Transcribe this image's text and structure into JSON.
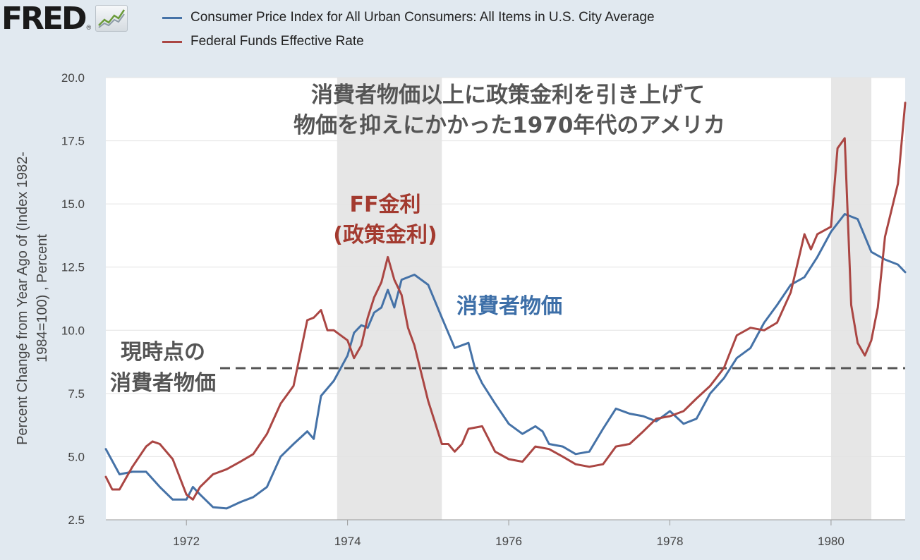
{
  "header": {
    "logo_text": "FRED",
    "logo_reg": "®",
    "logo_icon": "line-chart-icon"
  },
  "legend": [
    {
      "label": "Consumer Price Index for All Urban Consumers: All Items in U.S. City Average",
      "color": "#4572a7"
    },
    {
      "label": "Federal Funds Effective Rate",
      "color": "#aa4643"
    }
  ],
  "chart_data": {
    "type": "line",
    "ylabel_lines": [
      "Percent Change from Year Ago of (Index 1982-",
      "1984=100) , Percent"
    ],
    "ylim": [
      2.5,
      20.0
    ],
    "xlim": [
      1971.0,
      1980.92
    ],
    "y_ticks": [
      "2.5",
      "5.0",
      "7.5",
      "10.0",
      "12.5",
      "15.0",
      "17.5",
      "20.0"
    ],
    "x_ticks": [
      "1972",
      "1974",
      "1976",
      "1978",
      "1980"
    ],
    "grid": "horizontal",
    "recessions": [
      [
        1973.87,
        1975.17
      ],
      [
        1980.0,
        1980.5
      ]
    ],
    "reference_line": {
      "y": 8.5,
      "style": "dashed"
    },
    "series": [
      {
        "name": "Consumer Price Index for All Urban Consumers: All Items in U.S. City Average",
        "color": "#4572a7",
        "x": [
          1971.0,
          1971.17,
          1971.33,
          1971.5,
          1971.67,
          1971.83,
          1972.0,
          1972.08,
          1972.17,
          1972.33,
          1972.5,
          1972.67,
          1972.83,
          1973.0,
          1973.17,
          1973.33,
          1973.5,
          1973.58,
          1973.67,
          1973.83,
          1974.0,
          1974.08,
          1974.17,
          1974.25,
          1974.33,
          1974.42,
          1974.5,
          1974.58,
          1974.67,
          1974.83,
          1975.0,
          1975.17,
          1975.33,
          1975.5,
          1975.58,
          1975.67,
          1975.83,
          1976.0,
          1976.17,
          1976.33,
          1976.42,
          1976.5,
          1976.67,
          1976.83,
          1977.0,
          1977.17,
          1977.33,
          1977.5,
          1977.67,
          1977.83,
          1978.0,
          1978.17,
          1978.33,
          1978.5,
          1978.67,
          1978.83,
          1979.0,
          1979.17,
          1979.33,
          1979.5,
          1979.67,
          1979.83,
          1980.0,
          1980.17,
          1980.33,
          1980.5,
          1980.67,
          1980.83,
          1980.92
        ],
        "values": [
          5.3,
          4.3,
          4.4,
          4.4,
          3.8,
          3.3,
          3.3,
          3.8,
          3.5,
          3.0,
          2.95,
          3.2,
          3.4,
          3.8,
          5.0,
          5.5,
          6.0,
          5.7,
          7.4,
          8.0,
          9.0,
          9.9,
          10.2,
          10.1,
          10.7,
          10.9,
          11.6,
          10.9,
          12.0,
          12.2,
          11.8,
          10.5,
          9.3,
          9.5,
          8.5,
          7.9,
          7.1,
          6.3,
          5.9,
          6.2,
          6.0,
          5.5,
          5.4,
          5.1,
          5.2,
          6.1,
          6.9,
          6.7,
          6.6,
          6.4,
          6.8,
          6.3,
          6.5,
          7.5,
          8.1,
          8.9,
          9.3,
          10.3,
          11.0,
          11.8,
          12.1,
          12.9,
          13.9,
          14.6,
          14.4,
          13.1,
          12.8,
          12.6,
          12.3
        ]
      },
      {
        "name": "Federal Funds Effective Rate",
        "color": "#aa4643",
        "x": [
          1971.0,
          1971.08,
          1971.17,
          1971.33,
          1971.5,
          1971.58,
          1971.67,
          1971.83,
          1972.0,
          1972.08,
          1972.17,
          1972.33,
          1972.5,
          1972.67,
          1972.83,
          1973.0,
          1973.17,
          1973.33,
          1973.5,
          1973.58,
          1973.67,
          1973.75,
          1973.83,
          1974.0,
          1974.08,
          1974.17,
          1974.25,
          1974.33,
          1974.42,
          1974.5,
          1974.58,
          1974.67,
          1974.75,
          1974.83,
          1975.0,
          1975.17,
          1975.25,
          1975.33,
          1975.42,
          1975.5,
          1975.67,
          1975.83,
          1976.0,
          1976.17,
          1976.33,
          1976.5,
          1976.67,
          1976.83,
          1977.0,
          1977.17,
          1977.33,
          1977.5,
          1977.67,
          1977.83,
          1978.0,
          1978.17,
          1978.33,
          1978.5,
          1978.67,
          1978.83,
          1979.0,
          1979.17,
          1979.33,
          1979.5,
          1979.67,
          1979.75,
          1979.83,
          1980.0,
          1980.08,
          1980.17,
          1980.25,
          1980.33,
          1980.42,
          1980.5,
          1980.58,
          1980.67,
          1980.83,
          1980.92
        ],
        "values": [
          4.2,
          3.7,
          3.7,
          4.6,
          5.4,
          5.6,
          5.5,
          4.9,
          3.5,
          3.3,
          3.8,
          4.3,
          4.5,
          4.8,
          5.1,
          5.9,
          7.1,
          7.8,
          10.4,
          10.5,
          10.8,
          10.0,
          10.0,
          9.6,
          8.9,
          9.4,
          10.5,
          11.3,
          11.9,
          12.9,
          12.0,
          11.4,
          10.1,
          9.4,
          7.2,
          5.5,
          5.5,
          5.2,
          5.5,
          6.1,
          6.2,
          5.2,
          4.9,
          4.8,
          5.4,
          5.3,
          5.0,
          4.7,
          4.6,
          4.7,
          5.4,
          5.5,
          6.0,
          6.5,
          6.6,
          6.8,
          7.3,
          7.8,
          8.5,
          9.8,
          10.1,
          10.0,
          10.3,
          11.5,
          13.8,
          13.2,
          13.8,
          14.1,
          17.2,
          17.6,
          11.0,
          9.5,
          9.0,
          9.6,
          10.9,
          13.7,
          15.8,
          19.0
        ]
      }
    ],
    "annotations": {
      "title_line1": "消費者物価以上に政策金利を引き上げて",
      "title_line2": "物価を抑えにかかった1970年代のアメリカ",
      "ff_line1": "FF金利",
      "ff_line2": "(政策金利)",
      "cpi_label": "消費者物価",
      "current_line1": "現時点の",
      "current_line2": "消費者物価"
    },
    "annotation_colors": {
      "title": "#555555",
      "ff": "#a33a2f",
      "cpi": "#3d6fa8",
      "current": "#555555"
    }
  }
}
